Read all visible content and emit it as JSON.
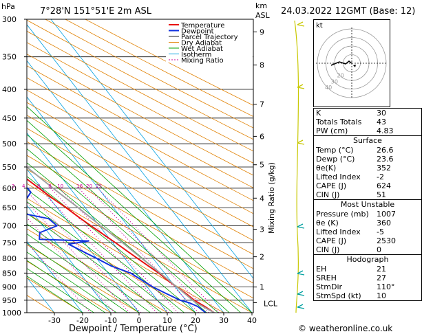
{
  "header": {
    "location": "7°28'N  151°51'E  2m  ASL",
    "datetime": "24.03.2022  12GMT  (Base: 12)",
    "hpa_label": "hPa",
    "km_label": "km",
    "asl_label": "ASL",
    "mixing_ratio_axis": "Mixing Ratio (g/kg)",
    "credit": "© weatheronline.co.uk"
  },
  "legend": [
    {
      "name": "Temperature",
      "color": "#e81010"
    },
    {
      "name": "Dewpoint",
      "color": "#1030e0"
    },
    {
      "name": "Parcel Trajectory",
      "color": "#909090"
    },
    {
      "name": "Dry Adiabat",
      "color": "#e08000"
    },
    {
      "name": "Wet Adiabat",
      "color": "#00a000"
    },
    {
      "name": "Isotherm",
      "color": "#00a0e0"
    },
    {
      "name": "Mixing Ratio",
      "color": "#cc0099"
    }
  ],
  "chart_data": {
    "type": "line",
    "title": "",
    "xlabel": "Dewpoint / Temperature (°C)",
    "ylabel": "hPa",
    "x_ticks": [
      -30,
      -20,
      -10,
      0,
      10,
      20,
      30,
      40
    ],
    "pressure_ticks": [
      300,
      350,
      400,
      450,
      500,
      550,
      600,
      650,
      700,
      750,
      800,
      850,
      900,
      950,
      1000
    ],
    "km_ticks": [
      {
        "km": "1",
        "p": 900
      },
      {
        "km": "2",
        "p": 795
      },
      {
        "km": "3",
        "p": 710
      },
      {
        "km": "4",
        "p": 625
      },
      {
        "km": "5",
        "p": 545
      },
      {
        "km": "6",
        "p": 485
      },
      {
        "km": "7",
        "p": 425
      },
      {
        "km": "8",
        "p": 362
      },
      {
        "km": "9",
        "p": 316
      }
    ],
    "lcl_label": "LCL",
    "lcl_p": 960,
    "mixing_ratio_labels": [
      "1",
      "2",
      "3",
      "4",
      "6",
      "8",
      "10",
      "16",
      "20",
      "25"
    ],
    "mixing_ratio_values": [
      1,
      2,
      3,
      4,
      6,
      8,
      10,
      16,
      20,
      25
    ],
    "series": [
      {
        "name": "Temperature",
        "points": [
          [
            1000,
            26.6
          ],
          [
            975,
            25.0
          ],
          [
            950,
            23.0
          ],
          [
            925,
            22.0
          ],
          [
            900,
            20.5
          ],
          [
            875,
            19.0
          ],
          [
            850,
            18.0
          ],
          [
            825,
            16.2
          ],
          [
            800,
            14.5
          ],
          [
            775,
            12.7
          ],
          [
            750,
            11.0
          ],
          [
            725,
            9.0
          ],
          [
            700,
            7.0
          ],
          [
            675,
            5.0
          ],
          [
            650,
            3.2
          ],
          [
            625,
            1.0
          ],
          [
            600,
            -1.0
          ],
          [
            575,
            -3.0
          ],
          [
            550,
            -5.0
          ],
          [
            525,
            -7.5
          ],
          [
            500,
            -10.0
          ],
          [
            475,
            -13.0
          ],
          [
            450,
            -16.0
          ],
          [
            425,
            -19.0
          ],
          [
            400,
            -22.5
          ],
          [
            375,
            -26.0
          ],
          [
            350,
            -30.0
          ],
          [
            345,
            -31.0
          ]
        ]
      },
      {
        "name": "Dewpoint",
        "points": [
          [
            1000,
            23.6
          ],
          [
            975,
            22.5
          ],
          [
            960,
            20.5
          ],
          [
            950,
            18.0
          ],
          [
            925,
            15.0
          ],
          [
            900,
            12.0
          ],
          [
            875,
            10.0
          ],
          [
            850,
            8.0
          ],
          [
            825,
            3.0
          ],
          [
            800,
            0.0
          ],
          [
            770,
            -4.0
          ],
          [
            755,
            -6.0
          ],
          [
            745,
            2.0
          ],
          [
            740,
            -15.0
          ],
          [
            720,
            -13.0
          ],
          [
            700,
            -5.0
          ],
          [
            680,
            -6.0
          ],
          [
            665,
            -14.0
          ],
          [
            645,
            -13.0
          ],
          [
            625,
            -8.0
          ],
          [
            610,
            -5.0
          ],
          [
            600,
            -5.0
          ],
          [
            590,
            -25.0
          ],
          [
            575,
            -32.0
          ],
          [
            560,
            -22.0
          ],
          [
            550,
            -35.0
          ],
          [
            540,
            -30.0
          ],
          [
            525,
            -30.0
          ],
          [
            510,
            -32.0
          ],
          [
            500,
            -37.0
          ],
          [
            490,
            -40.0
          ],
          [
            480,
            -42.0
          ],
          [
            470,
            -40.0
          ],
          [
            450,
            -35.0
          ],
          [
            425,
            -33.0
          ],
          [
            400,
            -33.0
          ],
          [
            380,
            -48.0
          ],
          [
            370,
            -62.0
          ],
          [
            360,
            -62.0
          ],
          [
            345,
            -56.0
          ],
          [
            330,
            -55.0
          ],
          [
            315,
            -54.0
          ],
          [
            300,
            -55.0
          ]
        ]
      },
      {
        "name": "Parcel Trajectory",
        "points": [
          [
            1000,
            26.6
          ],
          [
            960,
            22.9
          ],
          [
            925,
            21.5
          ],
          [
            900,
            20.5
          ],
          [
            850,
            18.5
          ],
          [
            800,
            16.0
          ],
          [
            750,
            13.5
          ],
          [
            700,
            10.5
          ],
          [
            650,
            7.5
          ],
          [
            600,
            4.0
          ],
          [
            550,
            0.5
          ],
          [
            500,
            -3.5
          ],
          [
            450,
            -8.5
          ],
          [
            400,
            -14.5
          ],
          [
            375,
            -18.0
          ],
          [
            350,
            -22.0
          ]
        ]
      }
    ],
    "hodograph": {
      "rings_kt": [
        10,
        20,
        30,
        40
      ],
      "ring_labels": [
        "20",
        "30",
        "40"
      ],
      "label": "kt"
    }
  },
  "indices": {
    "top": [
      {
        "k": "K",
        "v": "30"
      },
      {
        "k": "Totals Totals",
        "v": "43"
      },
      {
        "k": "PW (cm)",
        "v": "4.83"
      }
    ],
    "surface_title": "Surface",
    "surface": [
      {
        "k": "Temp (°C)",
        "v": "26.6"
      },
      {
        "k": "Dewp (°C)",
        "v": "23.6"
      },
      {
        "k": "θe(K)",
        "v": "352"
      },
      {
        "k": "Lifted Index",
        "v": "-2"
      },
      {
        "k": "CAPE (J)",
        "v": "624"
      },
      {
        "k": "CIN (J)",
        "v": "51"
      }
    ],
    "mu_title": "Most Unstable",
    "mu": [
      {
        "k": "Pressure (mb)",
        "v": "1007"
      },
      {
        "k": "θe (K)",
        "v": "360"
      },
      {
        "k": "Lifted Index",
        "v": "-5"
      },
      {
        "k": "CAPE (J)",
        "v": "2530"
      },
      {
        "k": "CIN (J)",
        "v": "0"
      }
    ],
    "hodo_title": "Hodograph",
    "hodo": [
      {
        "k": "EH",
        "v": "21"
      },
      {
        "k": "SREH",
        "v": "27"
      },
      {
        "k": "StmDir",
        "v": "110°"
      },
      {
        "k": "StmSpd (kt)",
        "v": "10"
      }
    ]
  }
}
